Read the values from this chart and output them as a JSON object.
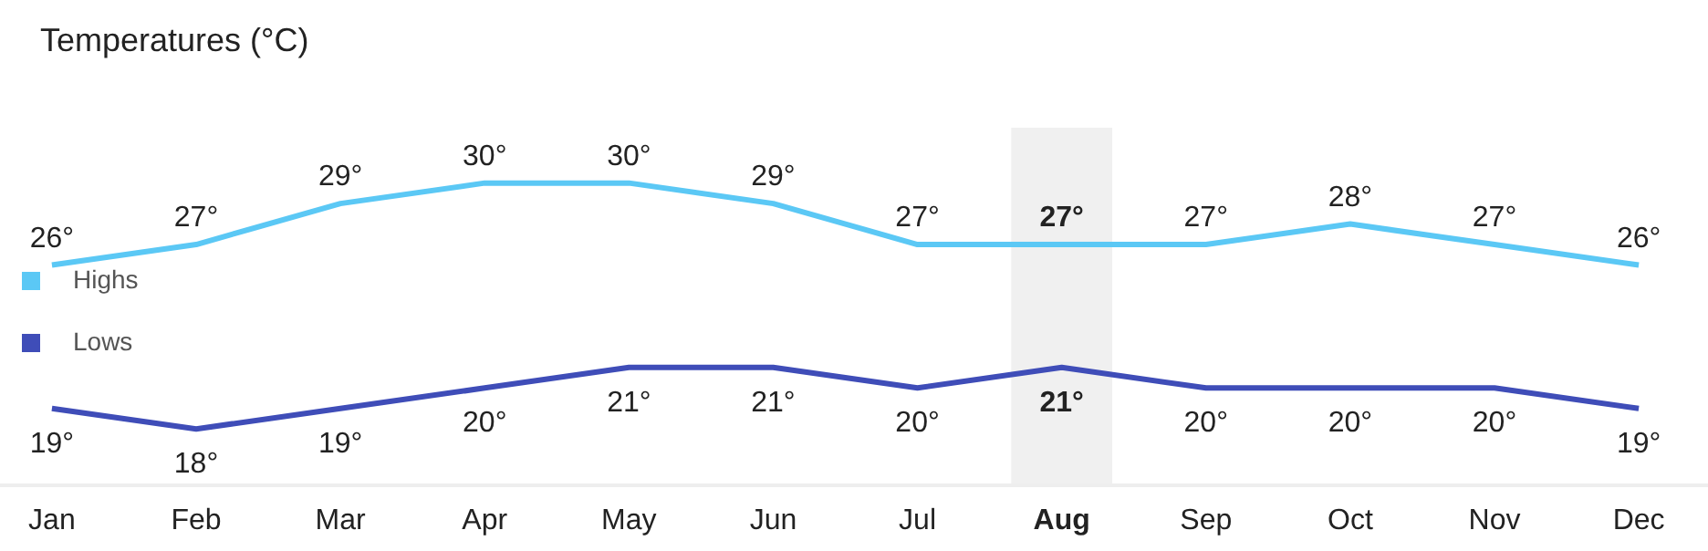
{
  "chart_data": {
    "type": "line",
    "title": "Temperatures (°C)",
    "categories": [
      "Jan",
      "Feb",
      "Mar",
      "Apr",
      "May",
      "Jun",
      "Jul",
      "Aug",
      "Sep",
      "Oct",
      "Nov",
      "Dec"
    ],
    "series": [
      {
        "name": "Highs",
        "color": "#5bc8f5",
        "values": [
          26,
          27,
          29,
          30,
          30,
          29,
          27,
          27,
          27,
          28,
          27,
          26
        ],
        "value_labels": [
          "26°",
          "27°",
          "29°",
          "30°",
          "30°",
          "29°",
          "27°",
          "27°",
          "27°",
          "28°",
          "27°",
          "26°"
        ]
      },
      {
        "name": "Lows",
        "color": "#3f4db8",
        "values": [
          19,
          18,
          19,
          20,
          21,
          21,
          20,
          21,
          20,
          20,
          20,
          19
        ],
        "value_labels": [
          "19°",
          "18°",
          "19°",
          "20°",
          "21°",
          "21°",
          "20°",
          "21°",
          "20°",
          "20°",
          "20°",
          "19°"
        ]
      }
    ],
    "bands": [
      {
        "axis": "x",
        "from": "Aug",
        "to": "Aug",
        "color": "#f0f0f0"
      }
    ],
    "legend": "left",
    "grid": false,
    "marker": "none",
    "line_style": "solid"
  }
}
